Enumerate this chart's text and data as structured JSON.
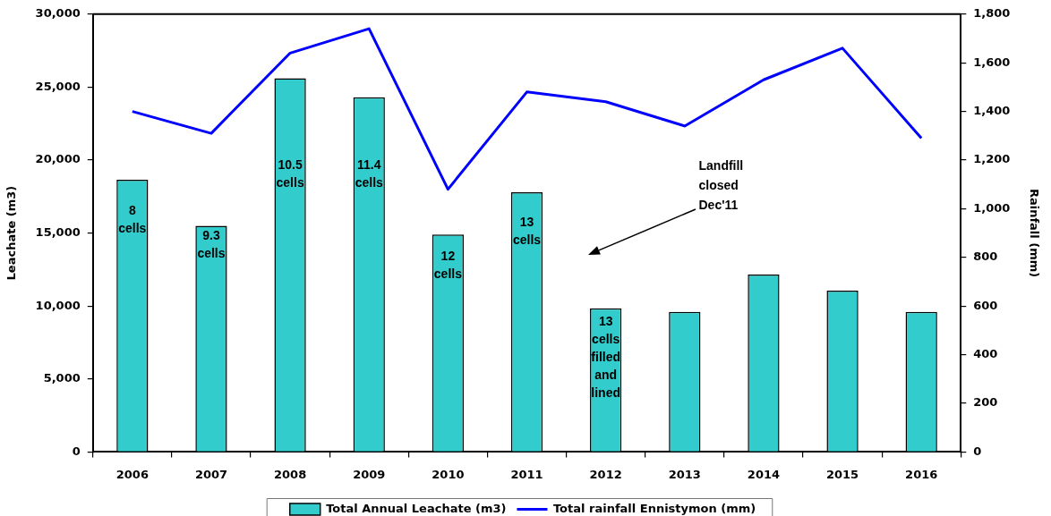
{
  "chart_data": {
    "type": "bar",
    "categories": [
      "2006",
      "2007",
      "2008",
      "2009",
      "2010",
      "2011",
      "2012",
      "2013",
      "2014",
      "2015",
      "2016"
    ],
    "series": [
      {
        "name": "Total Annual Leachate (m3)",
        "color": "#33cccc",
        "values": [
          18650,
          15500,
          25600,
          24300,
          14900,
          17800,
          9850,
          9600,
          12150,
          11050,
          9600
        ]
      },
      {
        "name": "Total rainfall Ennistymon (mm)",
        "type": "line",
        "axis": "y2",
        "color": "#0000ff",
        "values": [
          1400,
          1310,
          1640,
          1740,
          1080,
          1480,
          1440,
          1340,
          1530,
          1660,
          1290
        ]
      }
    ],
    "ylabel": "Leachate (m3)",
    "y2label": "Rainfall (mm)",
    "ylim": [
      0,
      30000
    ],
    "yticks": [
      0,
      {
        "value": 5000,
        "label": "5,000"
      },
      {
        "value": 10000,
        "label": "10,000"
      },
      {
        "value": 15000,
        "label": "15,000"
      },
      {
        "value": 20000,
        "label": "20,000"
      },
      {
        "value": 25000,
        "label": "25,000"
      },
      {
        "value": 30000,
        "label": "30,000"
      }
    ],
    "y2lim": [
      0,
      1800
    ],
    "y2ticks": [
      0,
      200,
      400,
      600,
      800,
      {
        "value": 1000,
        "label": "1,000"
      },
      {
        "value": 1200,
        "label": "1,200"
      },
      {
        "value": 1400,
        "label": "1,400"
      },
      {
        "value": 1600,
        "label": "1,600"
      },
      {
        "value": 1800,
        "label": "1,800"
      }
    ],
    "grid": false,
    "legend": "bottom",
    "marker": "none",
    "annotations": [
      "8 cells",
      "9.3 cells",
      "10.5 cells",
      "11.4 cells",
      "12 cells",
      "13 cells",
      "13 cells filled and lined",
      "Landfill closed Dec'11"
    ]
  }
}
